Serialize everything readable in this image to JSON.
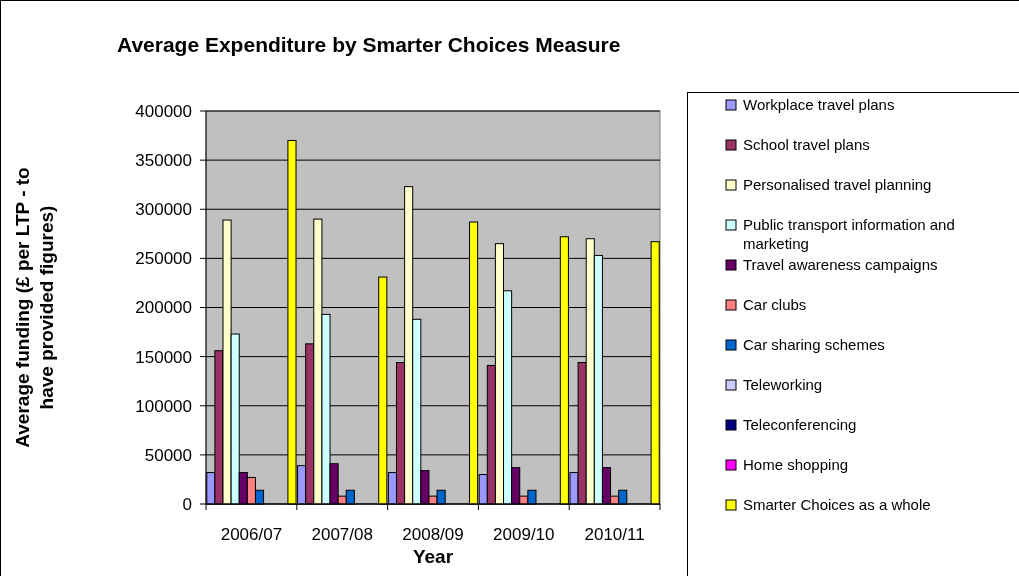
{
  "chart_data": {
    "type": "bar",
    "title": "Average Expenditure by Smarter Choices Measure",
    "xlabel": "Year",
    "ylabel": "Average funding (£ per LTP - to have provided figures)",
    "categories": [
      "2006/07",
      "2007/08",
      "2008/09",
      "2009/10",
      "2010/11"
    ],
    "series": [
      {
        "name": "Workplace travel plans",
        "color": "#9999ff",
        "values": [
          32000,
          39000,
          32000,
          30000,
          32000
        ]
      },
      {
        "name": "School travel plans",
        "color": "#993366",
        "values": [
          156000,
          163000,
          144000,
          141000,
          144000
        ]
      },
      {
        "name": "Personalised travel planning",
        "color": "#ffffcc",
        "values": [
          289000,
          290000,
          323000,
          265000,
          270000
        ]
      },
      {
        "name": "Public transport information and marketing",
        "color": "#ccffff",
        "values": [
          173000,
          193000,
          188000,
          217000,
          253000
        ]
      },
      {
        "name": "Travel awareness campaigns",
        "color": "#660066",
        "values": [
          32000,
          41000,
          34000,
          37000,
          37000
        ]
      },
      {
        "name": "Car clubs",
        "color": "#ff8080",
        "values": [
          27000,
          8000,
          8000,
          8000,
          8000
        ]
      },
      {
        "name": "Car sharing schemes",
        "color": "#0066cc",
        "values": [
          14000,
          14000,
          14000,
          14000,
          14000
        ]
      },
      {
        "name": "Teleworking",
        "color": "#ccccff",
        "values": [
          null,
          null,
          null,
          null,
          null
        ]
      },
      {
        "name": "Teleconferencing",
        "color": "#000080",
        "values": [
          null,
          null,
          null,
          null,
          null
        ]
      },
      {
        "name": "Home shopping",
        "color": "#ff00ff",
        "values": [
          null,
          null,
          null,
          null,
          null
        ]
      },
      {
        "name": "Smarter Choices as a whole",
        "color": "#ffff00",
        "values": [
          370000,
          231000,
          287000,
          272000,
          267000
        ]
      }
    ],
    "ylim": [
      0,
      400000
    ],
    "yticks": [
      0,
      50000,
      100000,
      150000,
      200000,
      250000,
      300000,
      350000,
      400000
    ],
    "grid": "y",
    "legend": "right"
  }
}
